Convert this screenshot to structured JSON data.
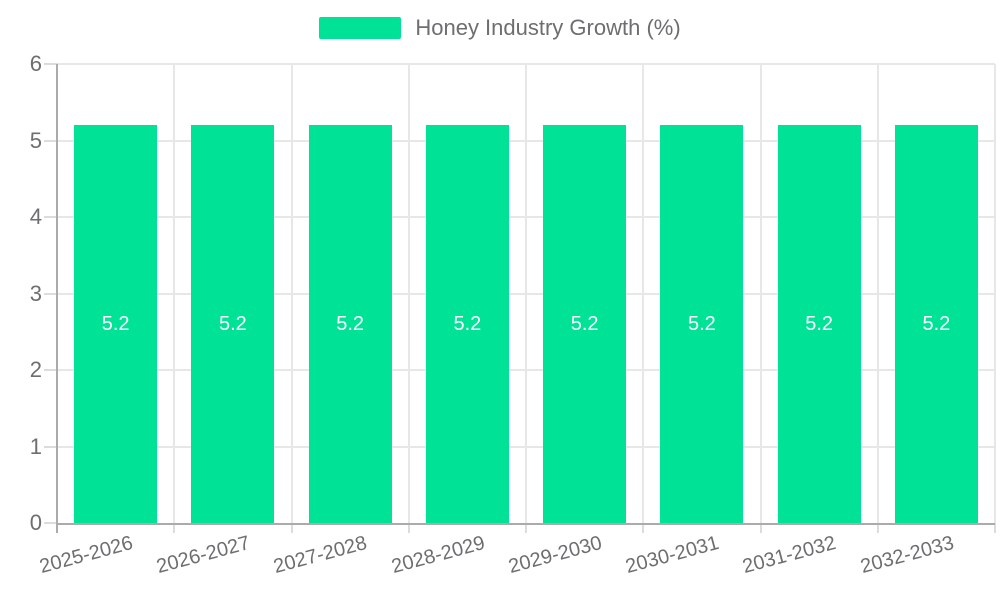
{
  "chart_data": {
    "type": "bar",
    "title": "",
    "legend": {
      "label": "Honey Industry Growth (%)",
      "position": "top"
    },
    "categories": [
      "2025-2026",
      "2026-2027",
      "2027-2028",
      "2028-2029",
      "2029-2030",
      "2030-2031",
      "2031-2032",
      "2032-2033"
    ],
    "values": [
      5.2,
      5.2,
      5.2,
      5.2,
      5.2,
      5.2,
      5.2,
      5.2
    ],
    "value_labels": [
      "5.2",
      "5.2",
      "5.2",
      "5.2",
      "5.2",
      "5.2",
      "5.2",
      "5.2"
    ],
    "xlabel": "",
    "ylabel": "",
    "ylim": [
      0,
      6
    ],
    "yticks": [
      0,
      1,
      2,
      3,
      4,
      5,
      6
    ],
    "grid": true,
    "x_label_rotation_deg": -15
  },
  "colors": {
    "bar": "#00E396",
    "grid": "#e7e7e7",
    "axis": "#ababab",
    "tick": "#dcdcdc",
    "text": "#6e6e71",
    "data_label": "#ffffff",
    "background": "#ffffff"
  }
}
